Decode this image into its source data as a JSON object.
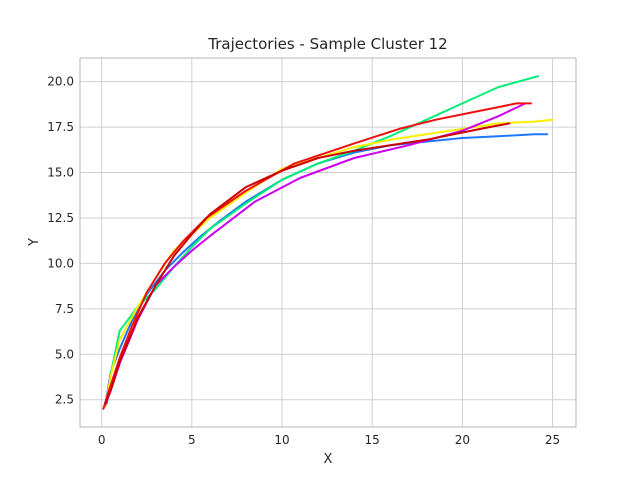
{
  "chart_data": {
    "type": "line",
    "title": "Trajectories - Sample Cluster 12",
    "xlabel": "X",
    "ylabel": "Y",
    "xlim": [
      -1.2,
      26.3
    ],
    "ylim": [
      1.0,
      21.3
    ],
    "xticks": [
      0,
      5,
      10,
      15,
      20,
      25
    ],
    "yticks": [
      2.5,
      5.0,
      7.5,
      10.0,
      12.5,
      15.0,
      17.5,
      20.0
    ],
    "xtick_labels": [
      "0",
      "5",
      "10",
      "15",
      "20",
      "25"
    ],
    "ytick_labels": [
      "2.5",
      "5.0",
      "7.5",
      "10.0",
      "12.5",
      "15.0",
      "17.5",
      "20.0"
    ],
    "grid": true,
    "legend": "none",
    "series": [
      {
        "color": "#1f77ff",
        "x": [
          0.2,
          0.5,
          1.0,
          1.7,
          2.5,
          3.5,
          4.5,
          5.5,
          6.5,
          8.0,
          10.0,
          12.0,
          14.0,
          16.0,
          18.0,
          20.0,
          22.0,
          24.0,
          24.7
        ],
        "y": [
          2.2,
          4.0,
          5.3,
          6.9,
          8.3,
          9.6,
          10.6,
          11.5,
          12.3,
          13.4,
          14.6,
          15.5,
          16.1,
          16.5,
          16.7,
          16.9,
          17.0,
          17.1,
          17.1
        ]
      },
      {
        "color": "#00ee77",
        "x": [
          0.3,
          0.5,
          1.0,
          2.0,
          3.0,
          4.0,
          5.0,
          6.0,
          8.0,
          10.0,
          12.0,
          14.0,
          16.0,
          18.0,
          20.0,
          22.0,
          24.2
        ],
        "y": [
          2.3,
          3.9,
          6.3,
          7.6,
          8.6,
          9.8,
          10.9,
          11.9,
          13.3,
          14.6,
          15.5,
          16.2,
          17.0,
          17.9,
          18.8,
          19.7,
          20.3
        ]
      },
      {
        "color": "#ffee00",
        "x": [
          0.2,
          0.5,
          1.0,
          2.0,
          3.0,
          4.0,
          5.0,
          6.0,
          8.0,
          10.0,
          12.0,
          14.0,
          16.0,
          18.0,
          20.0,
          22.0,
          24.0,
          25.0
        ],
        "y": [
          2.1,
          3.8,
          5.8,
          7.6,
          9.2,
          10.7,
          11.6,
          12.5,
          13.9,
          15.2,
          15.8,
          16.4,
          16.8,
          17.1,
          17.4,
          17.7,
          17.8,
          17.9
        ]
      },
      {
        "color": "#cc00ee",
        "x": [
          0.2,
          0.5,
          1.0,
          2.0,
          3.0,
          4.0,
          5.0,
          6.0,
          8.5,
          11.0,
          14.0,
          17.0,
          20.0,
          22.0,
          23.5
        ],
        "y": [
          2.2,
          3.0,
          4.5,
          6.9,
          8.8,
          9.8,
          10.7,
          11.5,
          13.4,
          14.7,
          15.8,
          16.5,
          17.3,
          18.1,
          18.8
        ]
      },
      {
        "color": "#ee1111",
        "x": [
          0.1,
          0.4,
          1.0,
          1.7,
          2.5,
          3.5,
          4.5,
          5.8,
          8.0,
          10.7,
          14.0,
          16.5,
          18.5,
          20.5,
          22.0,
          23.0,
          23.8
        ],
        "y": [
          2.0,
          3.0,
          4.8,
          6.6,
          8.4,
          10.0,
          11.2,
          12.5,
          14.0,
          15.5,
          16.6,
          17.4,
          17.9,
          18.3,
          18.6,
          18.8,
          18.8
        ]
      },
      {
        "color": "#cc0000",
        "x": [
          0.2,
          0.5,
          1.0,
          2.0,
          3.0,
          4.0,
          5.0,
          6.0,
          8.0,
          10.0,
          12.0,
          14.0,
          16.0,
          18.0,
          20.0,
          21.5,
          22.6
        ],
        "y": [
          2.3,
          3.0,
          4.6,
          7.0,
          8.8,
          10.4,
          11.6,
          12.7,
          14.2,
          15.1,
          15.8,
          16.2,
          16.5,
          16.8,
          17.2,
          17.5,
          17.7
        ]
      }
    ]
  }
}
